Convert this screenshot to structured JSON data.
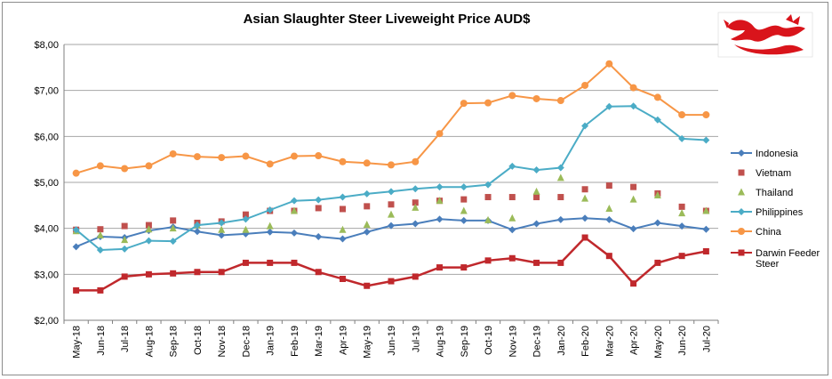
{
  "chart_data": {
    "type": "line",
    "title": "Asian Slaughter Steer Liveweight Price AUD$",
    "xlabel": "",
    "ylabel": "",
    "ylim": [
      2,
      8
    ],
    "yticks": [
      "$2,00",
      "$3,00",
      "$4,00",
      "$5,00",
      "$6,00",
      "$7,00",
      "$8,00"
    ],
    "grid": true,
    "legend_position": "right",
    "categories": [
      "May-18",
      "Jun-18",
      "Jul-18",
      "Aug-18",
      "Sep-18",
      "Oct-18",
      "Nov-18",
      "Dec-18",
      "Jan-19",
      "Feb-19",
      "Mar-19",
      "Apr-19",
      "May-19",
      "Jun-19",
      "Jul-19",
      "Aug-19",
      "Sep-19",
      "Oct-19",
      "Nov-19",
      "Dec-19",
      "Jan-20",
      "Feb-20",
      "Mar-20",
      "Apr-20",
      "May-20",
      "Jun-20",
      "Jul-20"
    ],
    "series": [
      {
        "name": "Indonesia",
        "color": "#4a7ebb",
        "marker": "diamond",
        "line": true,
        "values": [
          3.6,
          3.82,
          3.8,
          3.95,
          4.03,
          3.93,
          3.85,
          3.88,
          3.92,
          3.9,
          3.82,
          3.77,
          3.92,
          4.06,
          4.1,
          4.2,
          4.17,
          4.17,
          3.97,
          4.1,
          4.19,
          4.22,
          4.19,
          3.99,
          4.12,
          4.05,
          3.98
        ]
      },
      {
        "name": "Vietnam",
        "color": "#c0504d",
        "marker": "square",
        "line": false,
        "values": [
          3.97,
          3.98,
          4.05,
          4.07,
          4.17,
          4.12,
          4.15,
          4.3,
          4.38,
          4.38,
          4.44,
          4.42,
          4.48,
          4.52,
          4.56,
          4.6,
          4.63,
          4.68,
          4.68,
          4.68,
          4.68,
          4.85,
          4.93,
          4.9,
          4.76,
          4.47,
          4.38
        ]
      },
      {
        "name": "Thailand",
        "color": "#9bbb59",
        "marker": "triangle",
        "line": false,
        "values": [
          3.94,
          3.85,
          3.75,
          3.98,
          4.0,
          4.07,
          3.97,
          3.97,
          4.05,
          4.38,
          null,
          3.97,
          4.08,
          4.3,
          4.45,
          4.6,
          4.38,
          4.18,
          4.22,
          4.8,
          5.1,
          4.65,
          4.43,
          4.63,
          4.72,
          4.33,
          4.38
        ]
      },
      {
        "name": "Philippines",
        "color": "#4bacc6",
        "marker": "diamond",
        "line": true,
        "values": [
          3.97,
          3.53,
          3.55,
          3.73,
          3.72,
          4.07,
          4.12,
          4.2,
          4.4,
          4.6,
          4.62,
          4.68,
          4.75,
          4.8,
          4.86,
          4.9,
          4.9,
          4.95,
          5.35,
          5.27,
          5.32,
          6.23,
          6.65,
          6.66,
          6.36,
          5.95,
          5.92
        ]
      },
      {
        "name": "China",
        "color": "#f79646",
        "marker": "circle",
        "line": true,
        "values": [
          5.2,
          5.36,
          5.3,
          5.36,
          5.62,
          5.56,
          5.54,
          5.57,
          5.4,
          5.57,
          5.58,
          5.45,
          5.42,
          5.38,
          5.45,
          6.06,
          6.72,
          6.73,
          6.89,
          6.82,
          6.78,
          7.11,
          7.58,
          7.06,
          6.85,
          6.47,
          6.47
        ]
      },
      {
        "name": "Darwin Feeder Steer",
        "color": "#c0282c",
        "marker": "square",
        "line": true,
        "values": [
          2.65,
          2.65,
          2.95,
          3.0,
          3.02,
          3.05,
          3.05,
          3.25,
          3.25,
          3.25,
          3.05,
          2.9,
          2.75,
          2.85,
          2.95,
          3.15,
          3.15,
          3.3,
          3.35,
          3.25,
          3.25,
          3.8,
          3.4,
          2.8,
          3.25,
          3.4,
          3.5
        ]
      }
    ]
  },
  "logo": {
    "icon": "red-dragon-icon",
    "color": "#d9141b"
  }
}
